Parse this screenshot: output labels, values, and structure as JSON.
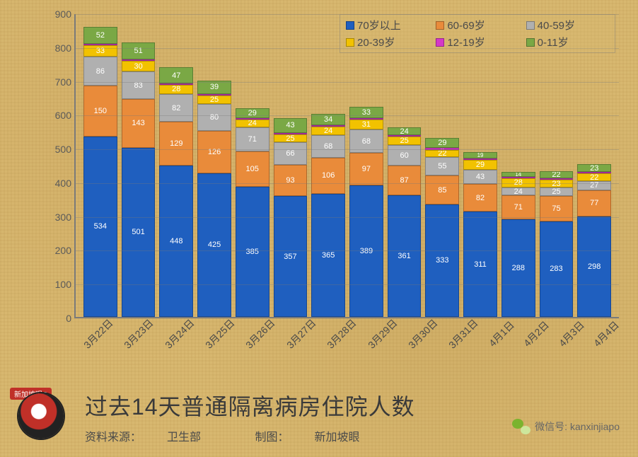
{
  "chart": {
    "type": "stacked-bar",
    "ylim": [
      0,
      900
    ],
    "ytick_step": 100,
    "grid_color": "rgba(120,120,120,0.35)",
    "axis_color": "#7a7a7a",
    "background": "#d8b870",
    "label_color": "#4a4a4a",
    "seg_label_color": "#ffffff",
    "seg_label_fontsize": 11,
    "x_label_fontsize": 14,
    "x_label_rotation": -45,
    "categories": [
      "3月22日",
      "3月23日",
      "3月24日",
      "3月25日",
      "3月26日",
      "3月27日",
      "3月28日",
      "3月29日",
      "3月30日",
      "3月31日",
      "4月1日",
      "4月2日",
      "4月3日",
      "4月4日"
    ],
    "series": [
      {
        "key": "age70",
        "label": "70岁以上",
        "color": "#1f5fbf"
      },
      {
        "key": "age60",
        "label": "60-69岁",
        "color": "#e98b3a"
      },
      {
        "key": "age40",
        "label": "40-59岁",
        "color": "#b0b0b0"
      },
      {
        "key": "age20",
        "label": "20-39岁",
        "color": "#f2c200"
      },
      {
        "key": "age12",
        "label": "12-19岁",
        "color": "#d538c8"
      },
      {
        "key": "age0",
        "label": "0-11岁",
        "color": "#7aa845"
      }
    ],
    "data": [
      {
        "age70": 534,
        "age60": 150,
        "age40": 86,
        "age20": 33,
        "age12": 3,
        "age0": 52
      },
      {
        "age70": 501,
        "age60": 143,
        "age40": 83,
        "age20": 30,
        "age12": 3,
        "age0": 51
      },
      {
        "age70": 448,
        "age60": 129,
        "age40": 82,
        "age20": 28,
        "age12": 2,
        "age0": 47
      },
      {
        "age70": 425,
        "age60": 126,
        "age40": 80,
        "age20": 25,
        "age12": 2,
        "age0": 39
      },
      {
        "age70": 385,
        "age60": 105,
        "age40": 71,
        "age20": 24,
        "age12": 2,
        "age0": 29
      },
      {
        "age70": 357,
        "age60": 93,
        "age40": 66,
        "age20": 25,
        "age12": 2,
        "age0": 43
      },
      {
        "age70": 365,
        "age60": 106,
        "age40": 68,
        "age20": 24,
        "age12": 2,
        "age0": 34
      },
      {
        "age70": 389,
        "age60": 97,
        "age40": 68,
        "age20": 31,
        "age12": 3,
        "age0": 33
      },
      {
        "age70": 361,
        "age60": 87,
        "age40": 60,
        "age20": 25,
        "age12": 3,
        "age0": 24
      },
      {
        "age70": 333,
        "age60": 85,
        "age40": 55,
        "age20": 22,
        "age12": 6,
        "age0": 29
      },
      {
        "age70": 311,
        "age60": 82,
        "age40": 43,
        "age20": 29,
        "age12": 3,
        "age0": 19
      },
      {
        "age70": 288,
        "age60": 71,
        "age40": 24,
        "age20": 28,
        "age12": 3,
        "age0": 14
      },
      {
        "age70": 283,
        "age60": 75,
        "age40": 25,
        "age20": 23,
        "age12": 3,
        "age0": 22
      },
      {
        "age70": 298,
        "age60": 77,
        "age40": 27,
        "age20": 22,
        "age12": 4,
        "age0": 23
      }
    ]
  },
  "legend_order": [
    "age70",
    "age60",
    "age40",
    "age20",
    "age12",
    "age0"
  ],
  "title": "过去14天普通隔离病房住院人数",
  "source_label": "资料来源：",
  "source_value": "卫生部",
  "maker_label": "制图：",
  "maker_value": "新加坡眼",
  "logo_tag": "新加坡眼®",
  "wechat_label": "微信号: kanxinjiapo"
}
